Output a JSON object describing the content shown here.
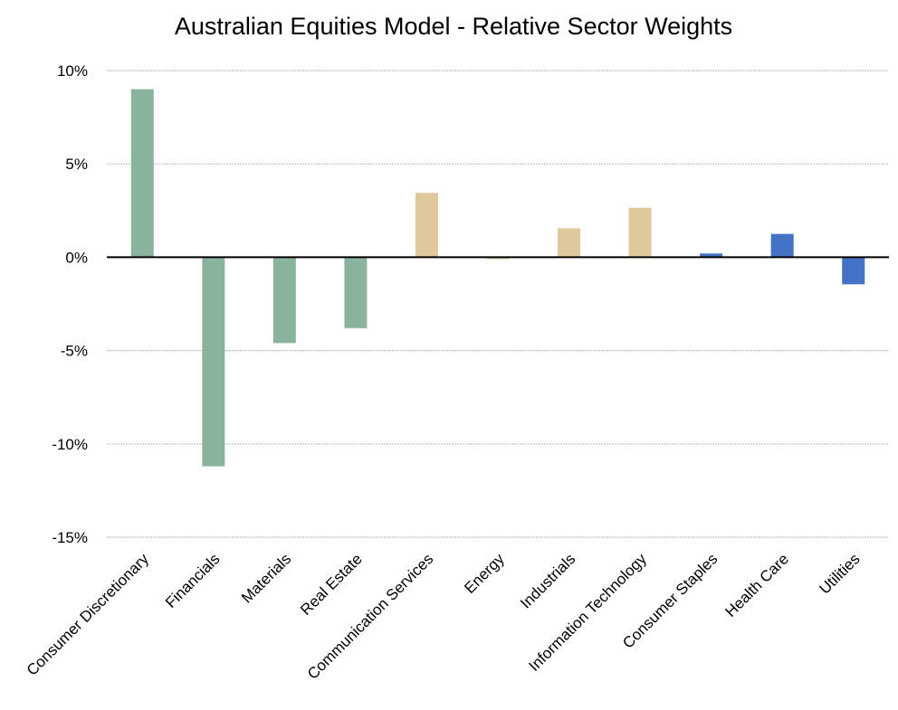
{
  "chart_data": {
    "type": "bar",
    "title": "Australian Equities Model - Relative Sector Weights",
    "xlabel": "",
    "ylabel": "",
    "categories": [
      "Consumer Discretionary",
      "Financials",
      "Materials",
      "Real Estate",
      "Communication Services",
      "Energy",
      "Industrials",
      "Information Technology",
      "Consumer Staples",
      "Health Care",
      "Utilities"
    ],
    "values": [
      9.0,
      -11.2,
      -4.6,
      -3.8,
      3.45,
      -0.1,
      1.55,
      2.65,
      0.2,
      1.25,
      -1.45
    ],
    "bar_colors": [
      "#8ab39d",
      "#8ab39d",
      "#8ab39d",
      "#8ab39d",
      "#dfc99c",
      "#dfc99c",
      "#dfc99c",
      "#dfc99c",
      "#4472c4",
      "#4472c4",
      "#4472c4"
    ],
    "ylim": [
      -15,
      10
    ],
    "yticks": [
      10,
      5,
      0,
      -5,
      -10,
      -15
    ],
    "ytick_labels": [
      "10%",
      "5%",
      "0%",
      "-5%",
      "-10%",
      "-15%"
    ],
    "grid": true,
    "grid_color": "#bfbfbf",
    "zero_line_color": "#000000",
    "legend": "none"
  }
}
